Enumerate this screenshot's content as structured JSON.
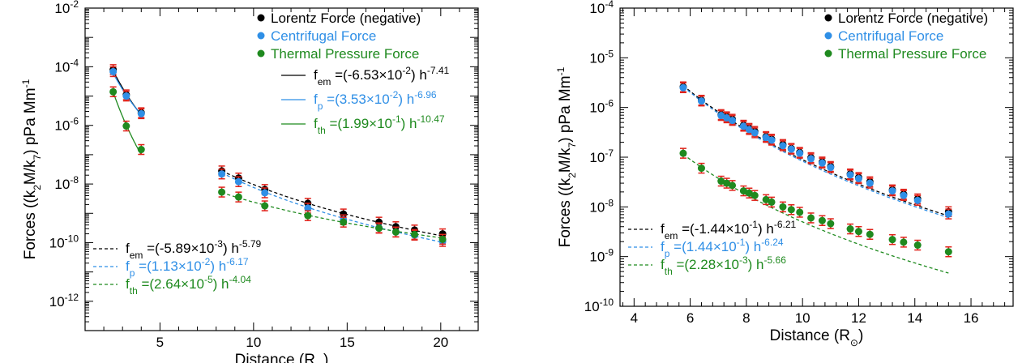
{
  "colors": {
    "black": "#000000",
    "blue": "#2f8fe6",
    "green": "#1f8a1f",
    "red": "#e0221a"
  },
  "chart_data": [
    {
      "type": "scatter",
      "xlabel": "Distance (R⊙)",
      "ylabel": "Forces ((k2M/k7) pPa Mm-1)",
      "xlim": [
        1,
        22
      ],
      "ylim_log10": [
        -13,
        -2
      ],
      "x_ticks": [
        5,
        10,
        15,
        20
      ],
      "y_ticks": [
        -12,
        -10,
        -8,
        -6,
        -4,
        -2
      ],
      "legend": [
        "Lorentz Force (negative)",
        "Centrifugal Force",
        "Thermal Pressure Force"
      ],
      "series": [
        {
          "name": "Lorentz Force (negative)",
          "color": "black",
          "points": [
            [
              2.5,
              8e-05
            ],
            [
              3.2,
              1.1e-05
            ],
            [
              4.0,
              2.7e-06
            ],
            [
              8.3,
              2.8e-08
            ],
            [
              9.2,
              1.6e-08
            ],
            [
              10.6,
              6.5e-09
            ],
            [
              12.9,
              2.2e-09
            ],
            [
              14.8,
              9.5e-10
            ],
            [
              16.7,
              5e-10
            ],
            [
              17.6,
              3.5e-10
            ],
            [
              18.6,
              2.7e-10
            ],
            [
              20.1,
              2e-10
            ]
          ]
        },
        {
          "name": "Centrifugal Force",
          "color": "blue",
          "points": [
            [
              2.5,
              6.8e-05
            ],
            [
              3.2,
              1e-05
            ],
            [
              4.0,
              2.5e-06
            ],
            [
              8.3,
              2.2e-08
            ],
            [
              9.2,
              1.2e-08
            ],
            [
              10.6,
              5e-09
            ],
            [
              12.9,
              1.5e-09
            ],
            [
              14.8,
              6e-10
            ],
            [
              16.7,
              3.2e-10
            ],
            [
              17.6,
              2.3e-10
            ],
            [
              18.6,
              1.8e-10
            ],
            [
              20.1,
              1.1e-10
            ]
          ]
        },
        {
          "name": "Thermal Pressure Force",
          "color": "green",
          "points": [
            [
              2.5,
              1.4e-05
            ],
            [
              3.2,
              9.5e-07
            ],
            [
              4.0,
              1.5e-07
            ],
            [
              8.3,
              5.3e-09
            ],
            [
              9.2,
              3.6e-09
            ],
            [
              10.6,
              1.8e-09
            ],
            [
              12.9,
              8.3e-10
            ],
            [
              14.8,
              5e-10
            ],
            [
              16.7,
              3.1e-10
            ],
            [
              17.6,
              2.3e-10
            ],
            [
              18.6,
              1.9e-10
            ],
            [
              20.1,
              1.3e-10
            ]
          ]
        }
      ],
      "fits": [
        {
          "color": "black",
          "style": "solid",
          "coef": 0.0653,
          "exp": -7.41,
          "range": [
            2.5,
            4.0
          ],
          "label_sub": "em",
          "label_coef": "(-6.53×10",
          "label_coef_exp": "-2",
          "label_exp": "-7.41"
        },
        {
          "color": "blue",
          "style": "solid",
          "coef": 0.0353,
          "exp": -6.96,
          "range": [
            2.5,
            4.0
          ],
          "label_sub": "p",
          "label_coef": "(3.53×10",
          "label_coef_exp": "-2",
          "label_exp": "-6.96"
        },
        {
          "color": "green",
          "style": "solid",
          "coef": 0.199,
          "exp": -10.47,
          "range": [
            2.5,
            4.0
          ],
          "label_sub": "th",
          "label_coef": "(1.99×10",
          "label_coef_exp": "-1",
          "label_exp": "-10.47"
        },
        {
          "color": "black",
          "style": "dashed",
          "coef": 0.00589,
          "exp": -5.79,
          "range": [
            8.3,
            20.1
          ],
          "label_sub": "em",
          "label_coef": "(-5.89×10",
          "label_coef_exp": "-3",
          "label_exp": "-5.79"
        },
        {
          "color": "blue",
          "style": "dashed",
          "coef": 0.0113,
          "exp": -6.17,
          "range": [
            8.3,
            20.1
          ],
          "label_sub": "p",
          "label_coef": "(1.13×10",
          "label_coef_exp": "-2",
          "label_exp": "-6.17"
        },
        {
          "color": "green",
          "style": "dashed",
          "coef": 2.64e-05,
          "exp": -4.04,
          "range": [
            8.3,
            20.1
          ],
          "label_sub": "th",
          "label_coef": "(2.64×10",
          "label_coef_exp": "-5",
          "label_exp": "-4.04"
        }
      ]
    },
    {
      "type": "scatter",
      "xlabel": "Distance (R⊙)",
      "ylabel": "Forces ((k2M/k7) pPa Mm-1)",
      "xlim": [
        3.5,
        17.5
      ],
      "ylim_log10": [
        -10,
        -4
      ],
      "x_ticks": [
        4,
        6,
        8,
        10,
        12,
        14,
        16
      ],
      "y_ticks": [
        -10,
        -9,
        -8,
        -7,
        -6,
        -5,
        -4
      ],
      "legend": [
        "Lorentz Force (negative)",
        "Centrifugal Force",
        "Thermal Pressure Force"
      ],
      "series": [
        {
          "name": "Lorentz Force (negative)",
          "color": "black",
          "points": [
            [
              5.75,
              2.6e-06
            ],
            [
              6.4,
              1.4e-06
            ],
            [
              7.1,
              7.2e-07
            ],
            [
              7.3,
              6.5e-07
            ],
            [
              7.5,
              5.8e-07
            ],
            [
              7.9,
              4.4e-07
            ],
            [
              8.1,
              3.8e-07
            ],
            [
              8.3,
              3.3e-07
            ],
            [
              8.7,
              2.6e-07
            ],
            [
              8.9,
              2.3e-07
            ],
            [
              9.3,
              1.8e-07
            ],
            [
              9.6,
              1.5e-07
            ],
            [
              9.9,
              1.25e-07
            ],
            [
              10.3,
              9.8e-08
            ],
            [
              10.7,
              8e-08
            ],
            [
              11.0,
              6.5e-08
            ],
            [
              11.7,
              4.6e-08
            ],
            [
              12.0,
              3.9e-08
            ],
            [
              12.4,
              3.2e-08
            ],
            [
              13.2,
              2.2e-08
            ],
            [
              13.6,
              1.8e-08
            ],
            [
              14.1,
              1.45e-08
            ],
            [
              15.2,
              8e-09
            ]
          ]
        },
        {
          "name": "Centrifugal Force",
          "color": "blue",
          "points": [
            [
              5.75,
              2.5e-06
            ],
            [
              6.4,
              1.35e-06
            ],
            [
              7.1,
              6.9e-07
            ],
            [
              7.3,
              6.2e-07
            ],
            [
              7.5,
              5.5e-07
            ],
            [
              7.9,
              4.2e-07
            ],
            [
              8.1,
              3.6e-07
            ],
            [
              8.3,
              3.1e-07
            ],
            [
              8.7,
              2.5e-07
            ],
            [
              8.9,
              2.2e-07
            ],
            [
              9.3,
              1.7e-07
            ],
            [
              9.6,
              1.45e-07
            ],
            [
              9.9,
              1.2e-07
            ],
            [
              10.3,
              9.3e-08
            ],
            [
              10.7,
              7.6e-08
            ],
            [
              11.0,
              6.2e-08
            ],
            [
              11.7,
              4.4e-08
            ],
            [
              12.0,
              3.7e-08
            ],
            [
              12.4,
              3e-08
            ],
            [
              13.2,
              2.1e-08
            ],
            [
              13.6,
              1.7e-08
            ],
            [
              14.1,
              1.35e-08
            ],
            [
              15.2,
              7.2e-09
            ]
          ]
        },
        {
          "name": "Thermal Pressure Force",
          "color": "green",
          "points": [
            [
              5.75,
              1.2e-07
            ],
            [
              6.4,
              6e-08
            ],
            [
              7.1,
              3.3e-08
            ],
            [
              7.3,
              3e-08
            ],
            [
              7.5,
              2.7e-08
            ],
            [
              7.9,
              2.1e-08
            ],
            [
              8.1,
              1.9e-08
            ],
            [
              8.3,
              1.7e-08
            ],
            [
              8.7,
              1.4e-08
            ],
            [
              8.9,
              1.25e-08
            ],
            [
              9.3,
              1e-08
            ],
            [
              9.6,
              8.8e-09
            ],
            [
              9.9,
              7.8e-09
            ],
            [
              10.3,
              6e-09
            ],
            [
              10.7,
              5.3e-09
            ],
            [
              11.0,
              4.6e-09
            ],
            [
              11.7,
              3.6e-09
            ],
            [
              12.0,
              3.2e-09
            ],
            [
              12.4,
              2.8e-09
            ],
            [
              13.2,
              2.2e-09
            ],
            [
              13.6,
              1.95e-09
            ],
            [
              14.1,
              1.7e-09
            ],
            [
              15.2,
              1.25e-09
            ]
          ]
        }
      ],
      "fits": [
        {
          "color": "black",
          "style": "dashed",
          "coef": 0.144,
          "exp": -6.21,
          "range": [
            5.75,
            15.2
          ],
          "label_sub": "em",
          "label_coef": "(-1.44×10",
          "label_coef_exp": "-1",
          "label_exp": "-6.21"
        },
        {
          "color": "blue",
          "style": "dashed",
          "coef": 0.144,
          "exp": -6.24,
          "range": [
            5.75,
            15.2
          ],
          "label_sub": "p",
          "label_coef": "(1.44×10",
          "label_coef_exp": "-1",
          "label_exp": "-6.24"
        },
        {
          "color": "green",
          "style": "dashed",
          "coef": 0.00228,
          "exp": -5.66,
          "range": [
            5.75,
            15.2
          ],
          "label_sub": "th",
          "label_coef": "(2.28×10",
          "label_coef_exp": "-3",
          "label_exp": "-5.66"
        }
      ]
    }
  ]
}
